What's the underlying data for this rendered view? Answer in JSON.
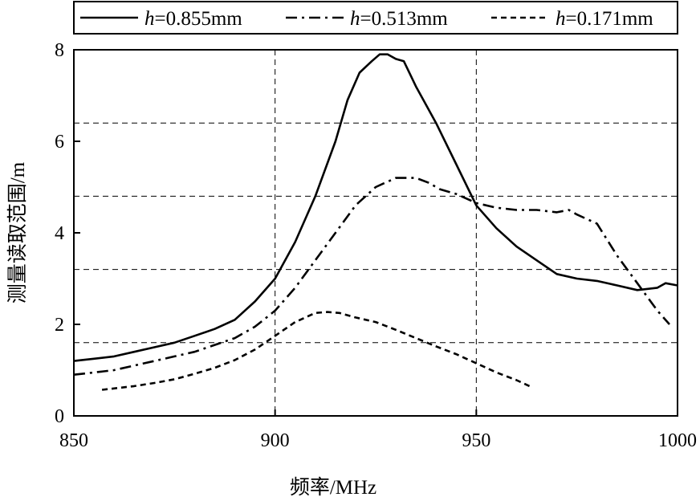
{
  "chart_data": {
    "type": "line",
    "title": "",
    "xlabel": "频率/MHz",
    "ylabel": "测量读取范围/m",
    "xlim": [
      850,
      1000
    ],
    "ylim": [
      0,
      8
    ],
    "xticks": [
      "850",
      "900",
      "950",
      "1000"
    ],
    "yticks": [
      "0",
      "2",
      "4",
      "6",
      "8"
    ],
    "vgrid": [
      900,
      950
    ],
    "hgrid": [
      1.6,
      3.2,
      4.8,
      6.4
    ],
    "legend": "top",
    "series": [
      {
        "name_italic": "h",
        "name_rest": "=0.855mm",
        "style": "solid",
        "color": "#000000",
        "x": [
          850,
          855,
          860,
          865,
          870,
          875,
          880,
          885,
          890,
          895,
          900,
          905,
          910,
          915,
          918,
          921,
          924,
          926,
          928,
          930,
          932,
          935,
          940,
          945,
          950,
          955,
          960,
          965,
          970,
          975,
          980,
          985,
          990,
          995,
          997,
          1000
        ],
        "y": [
          1.2,
          1.25,
          1.3,
          1.4,
          1.5,
          1.6,
          1.75,
          1.9,
          2.1,
          2.5,
          3.0,
          3.8,
          4.8,
          6.0,
          6.9,
          7.5,
          7.75,
          7.9,
          7.9,
          7.8,
          7.75,
          7.2,
          6.4,
          5.5,
          4.6,
          4.1,
          3.7,
          3.4,
          3.1,
          3.0,
          2.95,
          2.85,
          2.75,
          2.8,
          2.9,
          2.85
        ]
      },
      {
        "name_italic": "h",
        "name_rest": "=0.513mm",
        "style": "dashdot",
        "color": "#000000",
        "x": [
          850,
          855,
          860,
          865,
          870,
          875,
          880,
          885,
          890,
          895,
          900,
          905,
          910,
          915,
          920,
          925,
          930,
          935,
          938,
          941,
          945,
          950,
          955,
          960,
          965,
          970,
          973,
          975,
          980,
          985,
          990,
          995,
          998
        ],
        "y": [
          0.9,
          0.95,
          1.0,
          1.1,
          1.2,
          1.3,
          1.4,
          1.55,
          1.7,
          1.95,
          2.3,
          2.8,
          3.4,
          4.0,
          4.6,
          5.0,
          5.2,
          5.2,
          5.1,
          4.95,
          4.85,
          4.65,
          4.55,
          4.5,
          4.5,
          4.45,
          4.5,
          4.4,
          4.2,
          3.5,
          2.9,
          2.3,
          2.0
        ]
      },
      {
        "name_italic": "h",
        "name_rest": "=0.171mm",
        "style": "dashed",
        "color": "#000000",
        "x": [
          857,
          860,
          865,
          870,
          875,
          880,
          885,
          890,
          895,
          900,
          905,
          910,
          913,
          916,
          920,
          925,
          930,
          935,
          940,
          945,
          950,
          955,
          960,
          964
        ],
        "y": [
          0.57,
          0.6,
          0.65,
          0.72,
          0.8,
          0.92,
          1.05,
          1.22,
          1.45,
          1.75,
          2.05,
          2.25,
          2.27,
          2.25,
          2.15,
          2.05,
          1.88,
          1.7,
          1.52,
          1.35,
          1.15,
          0.95,
          0.78,
          0.62
        ]
      }
    ]
  }
}
